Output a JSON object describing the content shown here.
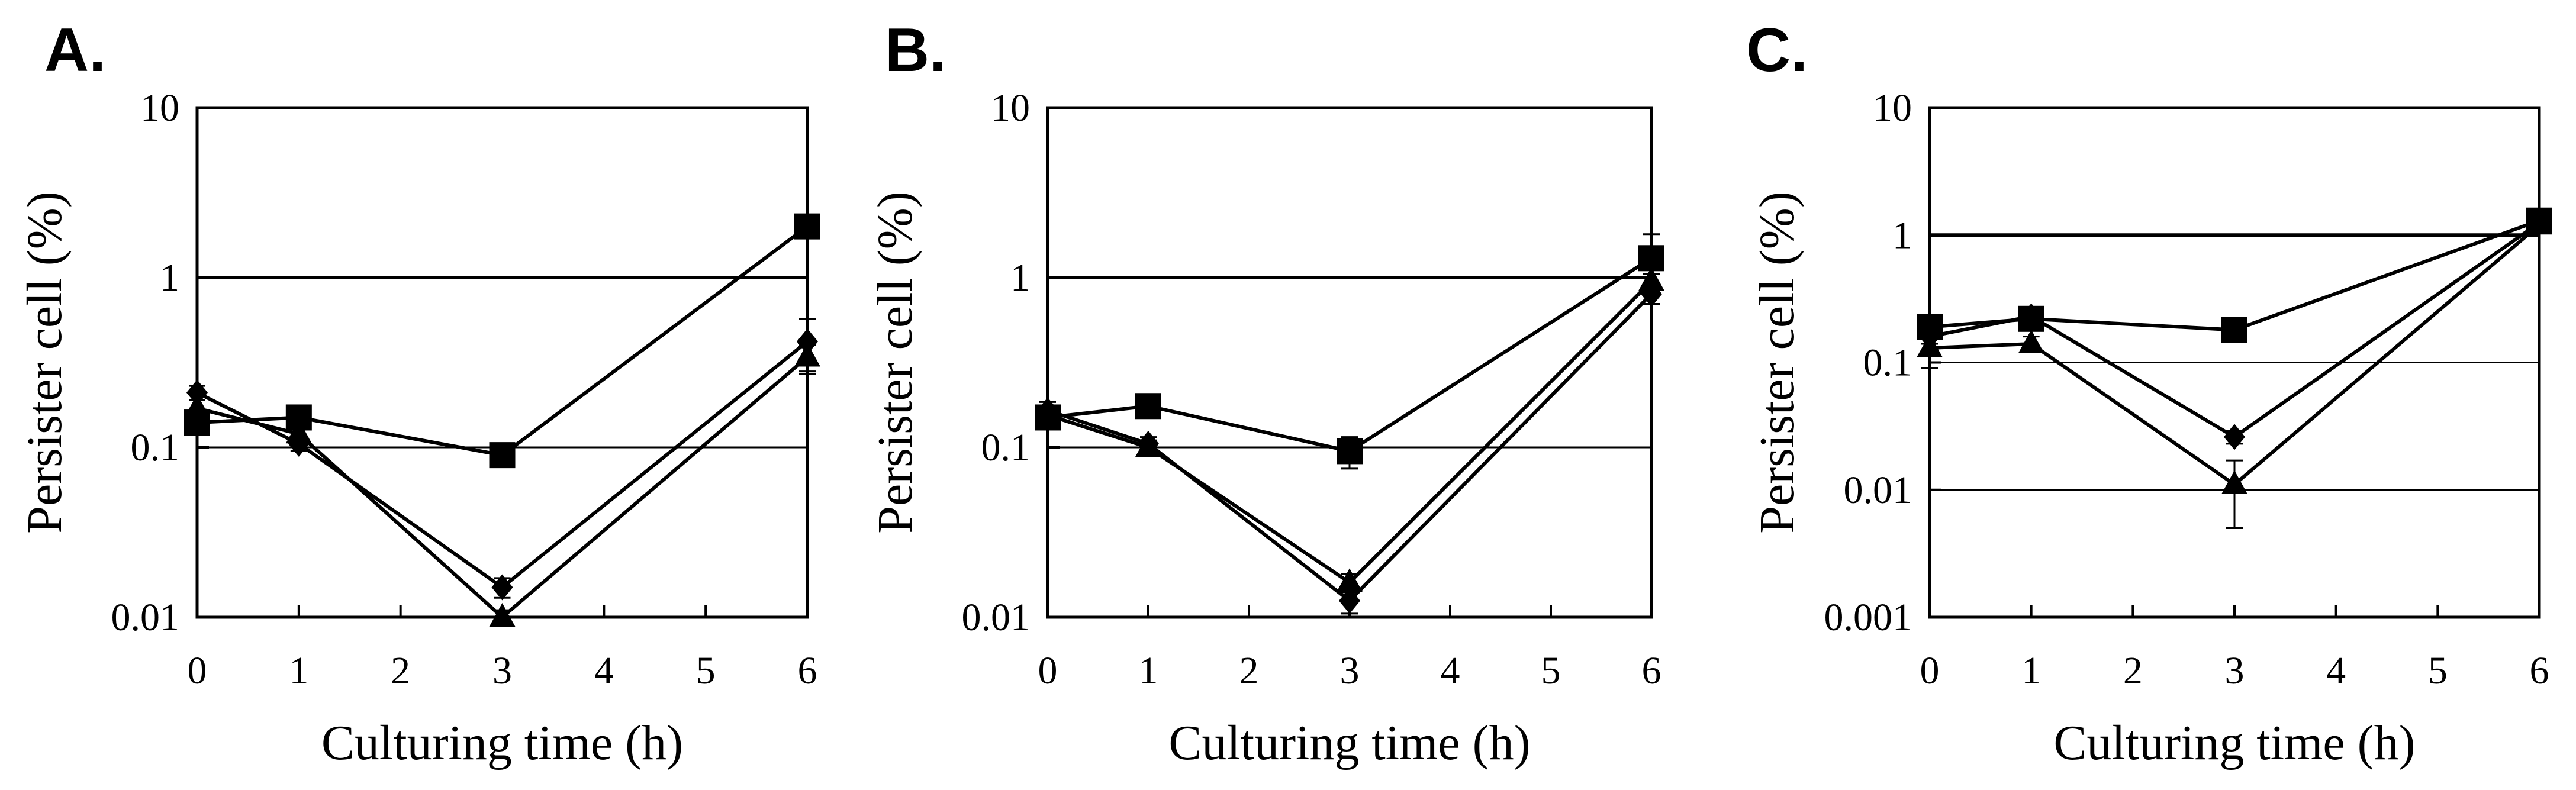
{
  "chart_data": [
    {
      "panel": "A.",
      "type": "line",
      "xlabel": "Culturing time (h)",
      "ylabel": "Persister cell (%)",
      "xlim": [
        0,
        6
      ],
      "xticks": [
        "0",
        "1",
        "2",
        "3",
        "4",
        "5",
        "6"
      ],
      "yscale": "log",
      "ylim": [
        0.01,
        10
      ],
      "yticks": [
        "0.01",
        "0.1",
        "1",
        "10"
      ],
      "hlines": [
        0.1,
        1
      ],
      "x": [
        0,
        1,
        3,
        6
      ],
      "series": [
        {
          "marker": "square",
          "values": [
            0.14,
            0.15,
            0.09,
            2.0
          ],
          "err": [
            0.02,
            0.02,
            0.01,
            0.2
          ]
        },
        {
          "marker": "diamond",
          "values": [
            0.21,
            0.105,
            0.015,
            0.42
          ],
          "err": [
            0.02,
            0.01,
            0.002,
            0.15
          ]
        },
        {
          "marker": "triangle",
          "values": [
            0.17,
            0.12,
            0.01,
            0.34
          ],
          "err": [
            0.02,
            0.01,
            0.001,
            0.06
          ]
        }
      ]
    },
    {
      "panel": "B.",
      "type": "line",
      "xlabel": "Culturing time (h)",
      "ylabel": "Persister cell (%)",
      "xlim": [
        0,
        6
      ],
      "xticks": [
        "0",
        "1",
        "2",
        "3",
        "4",
        "5",
        "6"
      ],
      "yscale": "log",
      "ylim": [
        0.01,
        10
      ],
      "yticks": [
        "0.01",
        "0.1",
        "1",
        "10"
      ],
      "hlines": [
        0.1,
        1
      ],
      "x": [
        0,
        1,
        3,
        6
      ],
      "series": [
        {
          "marker": "square",
          "values": [
            0.15,
            0.175,
            0.095,
            1.3
          ],
          "err": [
            0.02,
            0.02,
            0.02,
            0.5
          ]
        },
        {
          "marker": "diamond",
          "values": [
            0.165,
            0.105,
            0.0125,
            0.8
          ],
          "err": [
            0.02,
            0.01,
            0.002,
            0.1
          ]
        },
        {
          "marker": "triangle",
          "values": [
            0.155,
            0.1,
            0.016,
            0.95
          ],
          "err": [
            0.02,
            0.01,
            0.002,
            0.1
          ]
        }
      ]
    },
    {
      "panel": "C.",
      "type": "line",
      "xlabel": "Culturing time (h)",
      "ylabel": "Persister cell (%)",
      "xlim": [
        0,
        6
      ],
      "xticks": [
        "0",
        "1",
        "2",
        "3",
        "4",
        "5",
        "6"
      ],
      "yscale": "log",
      "ylim": [
        0.001,
        10
      ],
      "yticks": [
        "0.001",
        "0.01",
        "0.1",
        "1",
        "10"
      ],
      "hlines": [
        0.01,
        0.1,
        1
      ],
      "x": [
        0,
        1,
        3,
        6
      ],
      "series": [
        {
          "marker": "square",
          "values": [
            0.19,
            0.22,
            0.18,
            1.3
          ],
          "err": [
            0.03,
            0.04,
            0.02,
            0.1
          ]
        },
        {
          "marker": "diamond",
          "values": [
            0.16,
            0.23,
            0.026,
            1.25
          ],
          "err": [
            0.02,
            0.04,
            0.003,
            0.1
          ]
        },
        {
          "marker": "triangle",
          "values": [
            0.13,
            0.14,
            0.011,
            1.2
          ],
          "err": [
            0.04,
            0.02,
            0.006,
            0.1
          ]
        }
      ]
    }
  ]
}
